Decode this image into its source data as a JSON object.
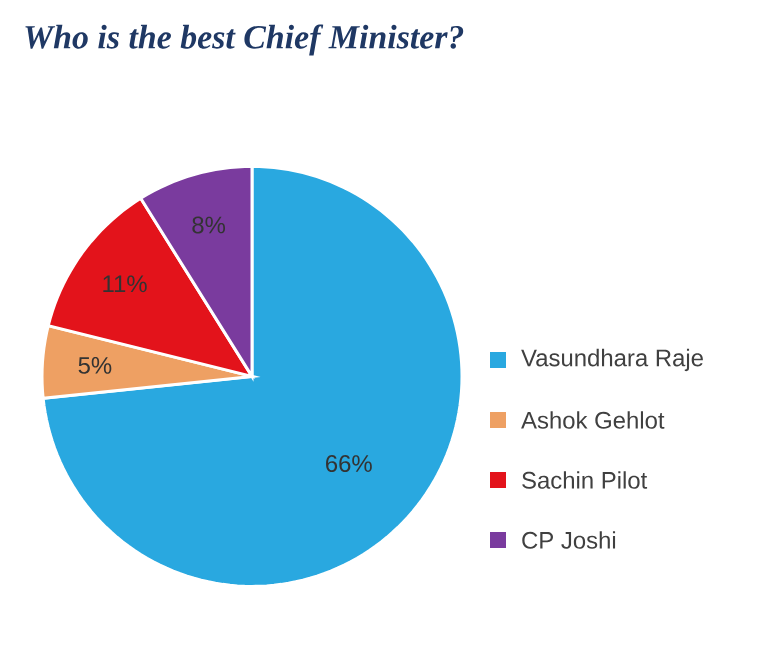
{
  "chart_data": {
    "type": "pie",
    "title": "Who is the best Chief Minister?",
    "categories": [
      "Vasundhara Raje",
      "Ashok Gehlot",
      "Sachin Pilot",
      "CP Joshi"
    ],
    "values": [
      66,
      5,
      11,
      8
    ],
    "value_labels": [
      "66%",
      "5%",
      "11%",
      "8%"
    ],
    "colors": [
      "#29a8e0",
      "#eea063",
      "#e3131b",
      "#7a3b9e"
    ],
    "legend": "right"
  }
}
